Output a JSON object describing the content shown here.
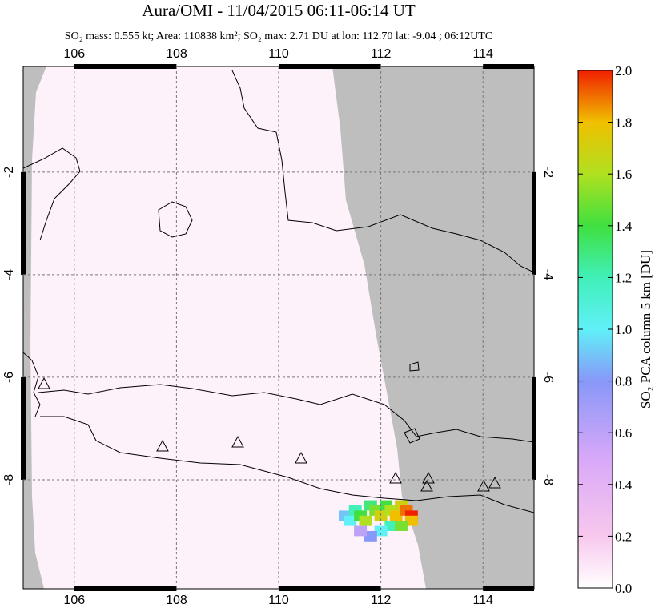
{
  "chart_data": {
    "type": "map",
    "title": "Aura/OMI - 11/04/2015 06:11-06:14 UT",
    "subtitle": "SO₂ mass: 0.555 kt; Area: 110838 km²; SO₂ max: 2.71 DU at lon: 112.70 lat: -9.04 ; 06:12UTC",
    "xlim": [
      105,
      115
    ],
    "xticks": [
      106,
      108,
      110,
      112,
      114
    ],
    "ylim": [
      -10.125,
      0.06
    ],
    "yticks": [
      -2,
      -4,
      -6,
      -8
    ],
    "grid": true,
    "colorbar": {
      "label": "SO₂ PCA column 5 km [DU]",
      "lim": [
        0,
        2
      ],
      "ticks": [
        {
          "value": 0,
          "label": "0.0"
        },
        {
          "value": 0.2,
          "label": "0.2"
        },
        {
          "value": 0.4,
          "label": "0.4"
        },
        {
          "value": 0.6,
          "label": "0.6"
        },
        {
          "value": 0.8,
          "label": "0.8"
        },
        {
          "value": 1,
          "label": "1.0"
        },
        {
          "value": 1.2,
          "label": "1.2"
        },
        {
          "value": 1.4,
          "label": "1.4"
        },
        {
          "value": 1.6,
          "label": "1.6"
        },
        {
          "value": 1.8,
          "label": "1.8"
        },
        {
          "value": 2,
          "label": "2.0"
        }
      ]
    },
    "plume": {
      "lon": [
        111.3,
        111.4,
        111.5,
        111.6,
        111.7,
        111.8,
        111.9,
        112.0,
        112.1,
        112.2,
        112.3,
        112.4,
        112.5,
        112.6,
        112.6,
        112.2,
        112.0,
        111.8,
        111.6,
        112.4
      ],
      "lat": [
        -8.7,
        -8.8,
        -8.6,
        -8.7,
        -8.8,
        -8.5,
        -8.6,
        -8.7,
        -8.5,
        -8.6,
        -8.7,
        -8.5,
        -8.6,
        -8.7,
        -8.8,
        -8.9,
        -9.0,
        -9.1,
        -9.0,
        -8.9
      ],
      "values": [
        0.9,
        1.0,
        1.2,
        1.4,
        1.6,
        1.3,
        1.5,
        1.7,
        1.4,
        1.6,
        1.8,
        1.7,
        1.9,
        2.0,
        1.8,
        1.2,
        1.0,
        0.8,
        0.6,
        1.5
      ]
    }
  }
}
